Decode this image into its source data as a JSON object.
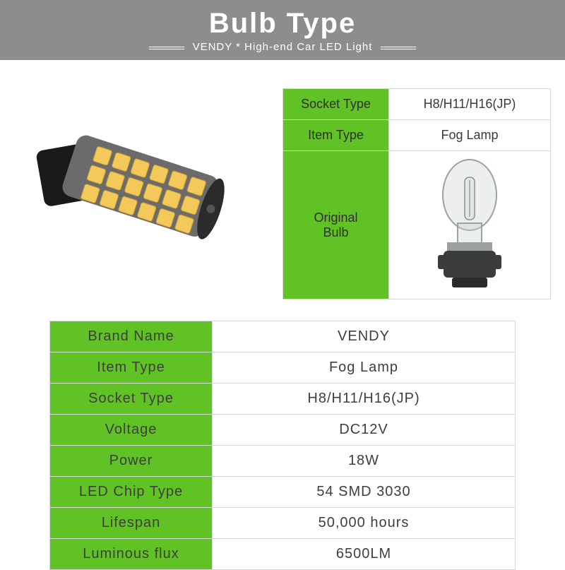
{
  "header": {
    "title": "Bulb Type",
    "subtitle": "VENDY * High-end Car LED Light"
  },
  "colors": {
    "header_bg": "#8c8e8d",
    "table_label_bg": "#60c225",
    "border": "#d8d8d8",
    "text": "#3e3e3e"
  },
  "small_table": {
    "rows": [
      {
        "label": "Socket Type",
        "value": "H8/H11/H16(JP)"
      },
      {
        "label": "Item Type",
        "value": "Fog Lamp"
      }
    ],
    "image_row": {
      "label": "Original\nBulb",
      "value_is_image": true,
      "image_name": "halogen-bulb"
    }
  },
  "main_table": {
    "rows": [
      {
        "label": "Brand Name",
        "value": "VENDY"
      },
      {
        "label": "Item Type",
        "value": "Fog Lamp"
      },
      {
        "label": "Socket Type",
        "value": "H8/H11/H16(JP)"
      },
      {
        "label": "Voltage",
        "value": "DC12V"
      },
      {
        "label": "Power",
        "value": "18W"
      },
      {
        "label": "LED Chip Type",
        "value": "54 SMD 3030"
      },
      {
        "label": "Lifespan",
        "value": "50,000 hours"
      },
      {
        "label": "Luminous flux",
        "value": "6500LM"
      }
    ]
  }
}
